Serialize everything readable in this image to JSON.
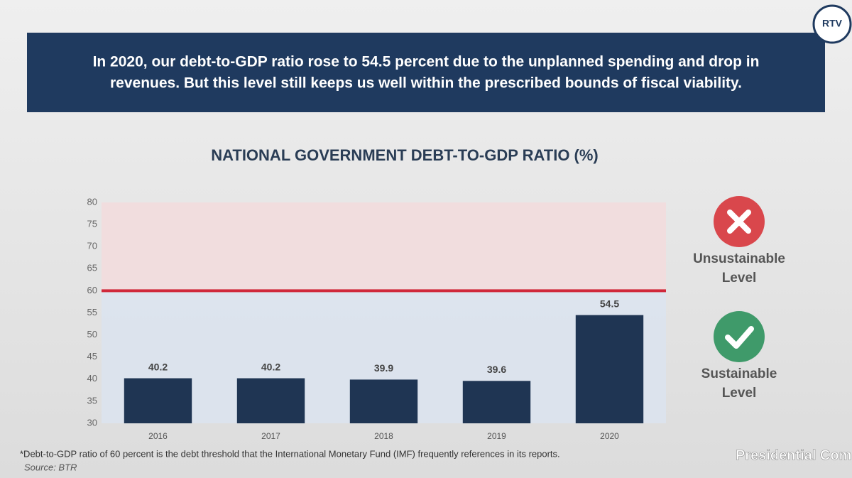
{
  "banner": {
    "lines": [
      "In 2020, our debt-to-GDP ratio rose to 54.5 percent due to the unplanned spending and drop in",
      "revenues. But this level still keeps us well within the prescribed bounds of fiscal viability."
    ]
  },
  "chart_data": {
    "type": "bar",
    "title": "NATIONAL GOVERNMENT DEBT-TO-GDP RATIO (%)",
    "categories": [
      "2016",
      "2017",
      "2018",
      "2019",
      "2020"
    ],
    "values": [
      40.2,
      40.2,
      39.9,
      39.6,
      54.5
    ],
    "value_labels": [
      "40.2",
      "40.2",
      "39.9",
      "39.6",
      "54.5"
    ],
    "color": "#1f3553",
    "threshold": 60,
    "threshold_color": "#d0283a",
    "ylim": [
      30,
      80
    ],
    "yticks": [
      30,
      35,
      40,
      45,
      50,
      55,
      60,
      65,
      70,
      75,
      80
    ],
    "grid": false
  },
  "legend": {
    "unsustainable": [
      "Unsustainable",
      "Level"
    ],
    "sustainable": [
      "Sustainable",
      "Level"
    ]
  },
  "footnote": "*Debt-to-GDP ratio of 60 percent is the debt threshold that the International Monetary Fund (IMF) frequently references in its reports.",
  "source": "Source: BTR",
  "logo": "RTV",
  "footer_brand": "Presidential Communications"
}
